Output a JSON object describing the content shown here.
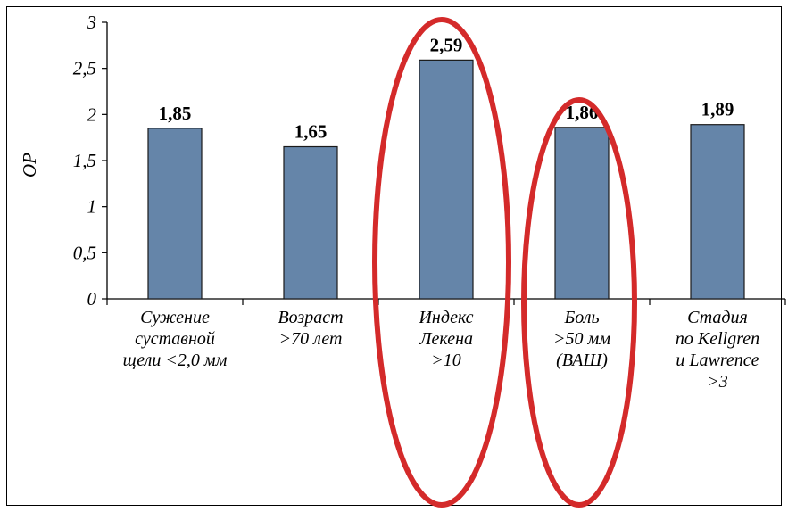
{
  "chart_data": {
    "type": "bar",
    "ylabel": "ОР",
    "ylim": [
      0,
      3
    ],
    "yticks": [
      "0",
      "0,5",
      "1",
      "1,5",
      "2",
      "2,5",
      "3"
    ],
    "categories": [
      [
        "Сужение",
        "суставной",
        "щели <2,0 мм"
      ],
      [
        "Возраст",
        ">70 лет"
      ],
      [
        "Индекс",
        "Лекена",
        ">10"
      ],
      [
        "Боль",
        ">50 мм",
        "(ВАШ)"
      ],
      [
        "Стадия",
        "по Kellgren",
        "и Lawrence",
        ">3"
      ]
    ],
    "values": [
      1.85,
      1.65,
      2.59,
      1.86,
      1.89
    ],
    "value_labels": [
      "1,85",
      "1,65",
      "2,59",
      "1,86",
      "1,89"
    ],
    "grid": false,
    "bar_color": "#6585a9",
    "highlighted_categories": [
      2,
      3
    ],
    "highlight_color": "#d42a2a"
  }
}
